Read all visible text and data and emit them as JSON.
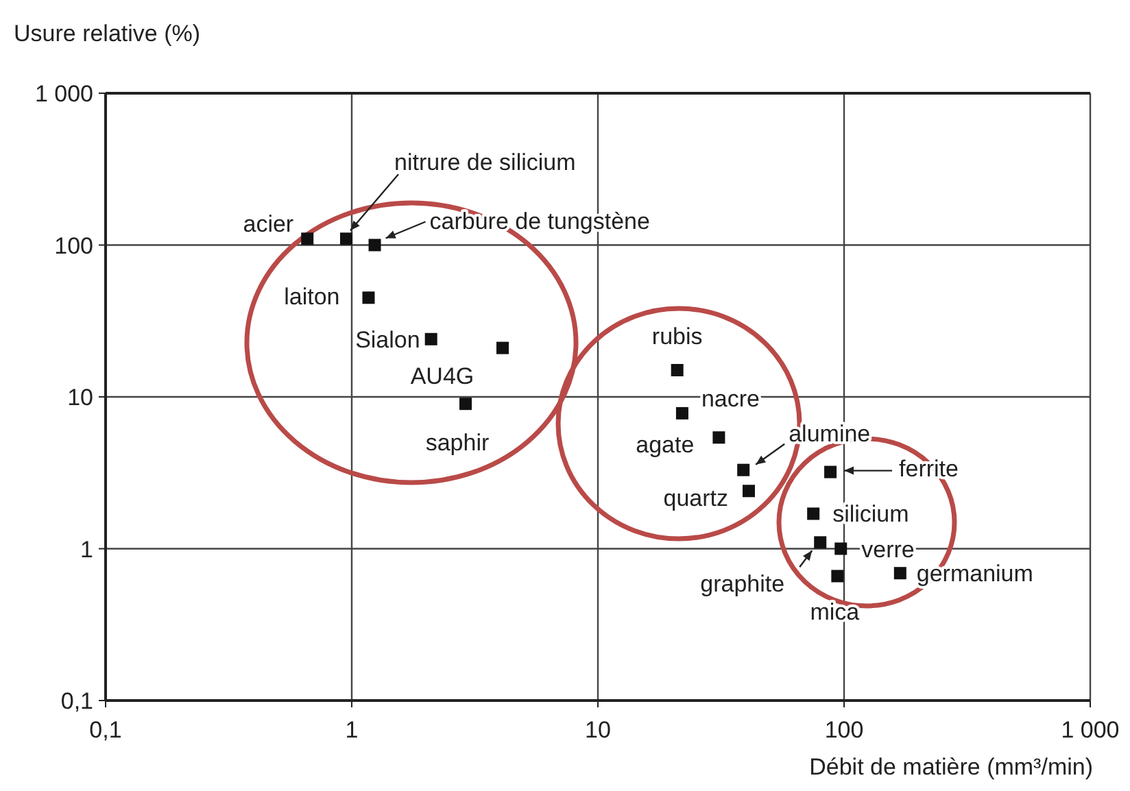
{
  "chart_data": {
    "type": "scatter",
    "xlabel": "Débit de matière (mm³/min)",
    "ylabel": "Usure relative (%)",
    "log": "xy",
    "grid": true,
    "marker": "square",
    "xlim": [
      0.1,
      1000
    ],
    "ylim": [
      0.1,
      1000
    ],
    "xticks": [
      {
        "value": 0.1,
        "label": "0,1"
      },
      1,
      10,
      100,
      {
        "value": 1000,
        "label": "1 000"
      }
    ],
    "yticks": [
      {
        "value": 0.1,
        "label": "0,1"
      },
      1,
      10,
      100,
      {
        "value": 1000,
        "label": "1 000"
      }
    ],
    "series": [
      {
        "color": "#111111",
        "x": [
          0.66,
          0.95,
          1.24,
          1.17,
          2.1,
          4.1,
          2.9,
          21,
          22,
          31,
          39,
          41,
          88,
          75,
          80,
          97,
          94,
          169
        ],
        "values": [
          110,
          110,
          100,
          45,
          24,
          21,
          9,
          15,
          7.8,
          5.4,
          3.3,
          2.4,
          3.2,
          1.7,
          1.1,
          1.0,
          0.66,
          0.69
        ]
      }
    ],
    "annotations": [
      {
        "text": "acier",
        "x": 0.66,
        "y": 110
      },
      {
        "text": "nitrure de silicium",
        "x": 0.95,
        "y": 110
      },
      {
        "text": "carbure de tungstène",
        "x": 1.24,
        "y": 100
      },
      {
        "text": "laiton",
        "x": 1.17,
        "y": 45
      },
      {
        "text": "Sialon",
        "x": 2.1,
        "y": 24
      },
      {
        "text": "AU4G",
        "x": 4.1,
        "y": 21
      },
      {
        "text": "saphir",
        "x": 2.9,
        "y": 9
      },
      {
        "text": "rubis",
        "x": 21,
        "y": 15
      },
      {
        "text": "nacre",
        "x": 22,
        "y": 7.8
      },
      {
        "text": "agate",
        "x": 31,
        "y": 5.4
      },
      {
        "text": "alumine",
        "x": 39,
        "y": 3.3
      },
      {
        "text": "quartz",
        "x": 41,
        "y": 2.4
      },
      {
        "text": "ferrite",
        "x": 88,
        "y": 3.2
      },
      {
        "text": "silicium",
        "x": 75,
        "y": 1.7
      },
      {
        "text": "graphite",
        "x": 80,
        "y": 1.1
      },
      {
        "text": "verre",
        "x": 97,
        "y": 1.0
      },
      {
        "text": "mica",
        "x": 94,
        "y": 0.66
      },
      {
        "text": "germanium",
        "x": 169,
        "y": 0.69
      }
    ]
  }
}
